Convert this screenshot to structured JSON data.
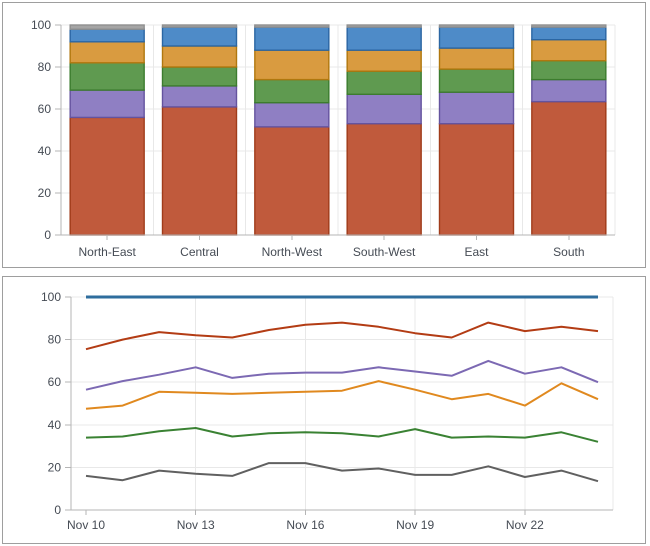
{
  "theme": {
    "axis_text_color": "#454b54",
    "axis_line_color": "#b5b5b5",
    "grid_color": "#e8e8e8",
    "panel_border_color": "#9e9e9e",
    "background": "#ffffff"
  },
  "chart_data": [
    {
      "type": "bar",
      "stacked": true,
      "title": "",
      "xlabel": "",
      "ylabel": "",
      "ylim": [
        0,
        100
      ],
      "yticks": [
        0,
        20,
        40,
        60,
        80,
        100
      ],
      "grid": true,
      "legend": "none",
      "categories": [
        "North-East",
        "Central",
        "North-West",
        "South-West",
        "East",
        "South"
      ],
      "series": [
        {
          "name": "red-segment",
          "color": "#c05a3c",
          "border": "#a03b1a",
          "values": [
            56,
            61,
            51.5,
            53,
            53,
            63.5
          ]
        },
        {
          "name": "purple-segment",
          "color": "#8f7fc3",
          "border": "#64539e",
          "values": [
            13,
            10,
            11.5,
            14,
            15,
            10.5
          ]
        },
        {
          "name": "green-segment",
          "color": "#5f9a50",
          "border": "#3c7c2e",
          "values": [
            13,
            9,
            11,
            11,
            11,
            9
          ]
        },
        {
          "name": "orange-segment",
          "color": "#d99b40",
          "border": "#b0770e",
          "values": [
            10,
            10,
            14,
            10,
            10,
            10
          ]
        },
        {
          "name": "blue-segment",
          "color": "#4e8bc8",
          "border": "#2b66a3",
          "values": [
            6,
            9,
            11,
            11,
            10,
            6
          ]
        },
        {
          "name": "gray-segment",
          "color": "#a5a5a5",
          "border": "#8f8f8f",
          "values": [
            2,
            1,
            1,
            1,
            1,
            1
          ]
        }
      ]
    },
    {
      "type": "line",
      "title": "",
      "xlabel": "",
      "ylabel": "",
      "ylim": [
        0,
        100
      ],
      "yticks": [
        0,
        20,
        40,
        60,
        80,
        100
      ],
      "grid": true,
      "legend": "none",
      "n_points": 15,
      "x_tick_labels": [
        "Nov 10",
        "Nov 13",
        "Nov 16",
        "Nov 19",
        "Nov 22"
      ],
      "x_tick_indices": [
        0,
        3,
        6,
        9,
        12
      ],
      "series": [
        {
          "name": "blue-line",
          "color": "#2e6d9d",
          "width": 3,
          "values": [
            100,
            100,
            100,
            100,
            100,
            100,
            100,
            100,
            100,
            100,
            100,
            100,
            100,
            100,
            100
          ]
        },
        {
          "name": "red-line",
          "color": "#b33c14",
          "width": 2,
          "values": [
            75.5,
            80,
            83.5,
            82,
            81,
            84.5,
            87,
            88,
            86,
            83,
            81,
            88,
            84,
            86,
            84
          ]
        },
        {
          "name": "purple-line",
          "color": "#7c69b3",
          "width": 2,
          "values": [
            56.5,
            60.5,
            63.5,
            67,
            62,
            64,
            64.5,
            64.5,
            67,
            65,
            63,
            70,
            64,
            67,
            60
          ]
        },
        {
          "name": "orange-line",
          "color": "#e0891f",
          "width": 2,
          "values": [
            47.5,
            49,
            55.5,
            55,
            54.5,
            55,
            55.5,
            56,
            60.5,
            56.5,
            52,
            54.5,
            49,
            59.5,
            52
          ]
        },
        {
          "name": "green-line",
          "color": "#3a8233",
          "width": 2,
          "values": [
            34,
            34.5,
            37,
            38.5,
            34.5,
            36,
            36.5,
            36,
            34.5,
            38,
            34,
            34.5,
            34,
            36.5,
            32
          ]
        },
        {
          "name": "gray-line",
          "color": "#606060",
          "width": 2,
          "values": [
            16,
            14,
            18.5,
            17,
            16,
            22,
            22,
            18.5,
            19.5,
            16.5,
            16.5,
            20.5,
            15.5,
            18.5,
            13.5
          ]
        }
      ]
    }
  ]
}
